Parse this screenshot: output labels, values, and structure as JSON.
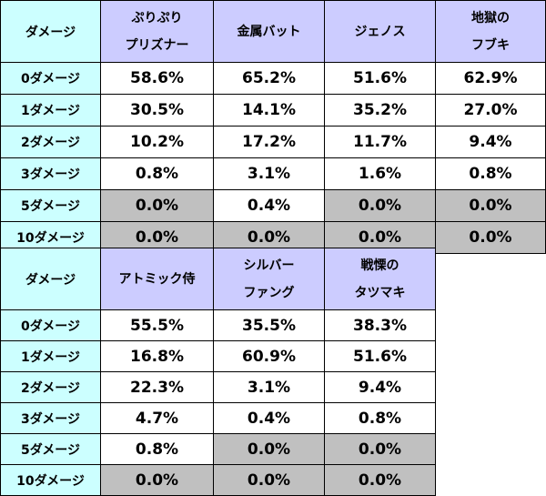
{
  "colors": {
    "header_bg": "#ccccff",
    "label_bg": "#ccffff",
    "cell_bg": "#ffffff",
    "zero_cell_bg": "#c0c0c0"
  },
  "tables": [
    {
      "corner": "ダメージ",
      "columns": [
        {
          "lines": [
            "ぷりぷり",
            "プリズナー"
          ]
        },
        {
          "lines": [
            "金属バット"
          ]
        },
        {
          "lines": [
            "ジェノス"
          ]
        },
        {
          "lines": [
            "地獄の",
            "フブキ"
          ]
        }
      ],
      "rows": [
        {
          "label": "0ダメージ",
          "values": [
            "58.6%",
            "65.2%",
            "51.6%",
            "62.9%"
          ],
          "gray": [
            false,
            false,
            false,
            false
          ]
        },
        {
          "label": "1ダメージ",
          "values": [
            "30.5%",
            "14.1%",
            "35.2%",
            "27.0%"
          ],
          "gray": [
            false,
            false,
            false,
            false
          ]
        },
        {
          "label": "2ダメージ",
          "values": [
            "10.2%",
            "17.2%",
            "11.7%",
            "9.4%"
          ],
          "gray": [
            false,
            false,
            false,
            false
          ]
        },
        {
          "label": "3ダメージ",
          "values": [
            "0.8%",
            "3.1%",
            "1.6%",
            "0.8%"
          ],
          "gray": [
            false,
            false,
            false,
            false
          ]
        },
        {
          "label": "5ダメージ",
          "values": [
            "0.0%",
            "0.4%",
            "0.0%",
            "0.0%"
          ],
          "gray": [
            true,
            false,
            true,
            true
          ]
        },
        {
          "label": "10ダメージ",
          "values": [
            "0.0%",
            "0.0%",
            "0.0%",
            "0.0%"
          ],
          "gray": [
            true,
            true,
            true,
            true
          ]
        }
      ]
    },
    {
      "corner": "ダメージ",
      "columns": [
        {
          "lines": [
            "アトミック侍"
          ]
        },
        {
          "lines": [
            "シルバー",
            "ファング"
          ]
        },
        {
          "lines": [
            "戦慄の",
            "タツマキ"
          ]
        }
      ],
      "rows": [
        {
          "label": "0ダメージ",
          "values": [
            "55.5%",
            "35.5%",
            "38.3%"
          ],
          "gray": [
            false,
            false,
            false
          ]
        },
        {
          "label": "1ダメージ",
          "values": [
            "16.8%",
            "60.9%",
            "51.6%"
          ],
          "gray": [
            false,
            false,
            false
          ]
        },
        {
          "label": "2ダメージ",
          "values": [
            "22.3%",
            "3.1%",
            "9.4%"
          ],
          "gray": [
            false,
            false,
            false
          ]
        },
        {
          "label": "3ダメージ",
          "values": [
            "4.7%",
            "0.4%",
            "0.8%"
          ],
          "gray": [
            false,
            false,
            false
          ]
        },
        {
          "label": "5ダメージ",
          "values": [
            "0.8%",
            "0.0%",
            "0.0%"
          ],
          "gray": [
            false,
            true,
            true
          ]
        },
        {
          "label": "10ダメージ",
          "values": [
            "0.0%",
            "0.0%",
            "0.0%"
          ],
          "gray": [
            true,
            true,
            true
          ]
        }
      ]
    }
  ]
}
